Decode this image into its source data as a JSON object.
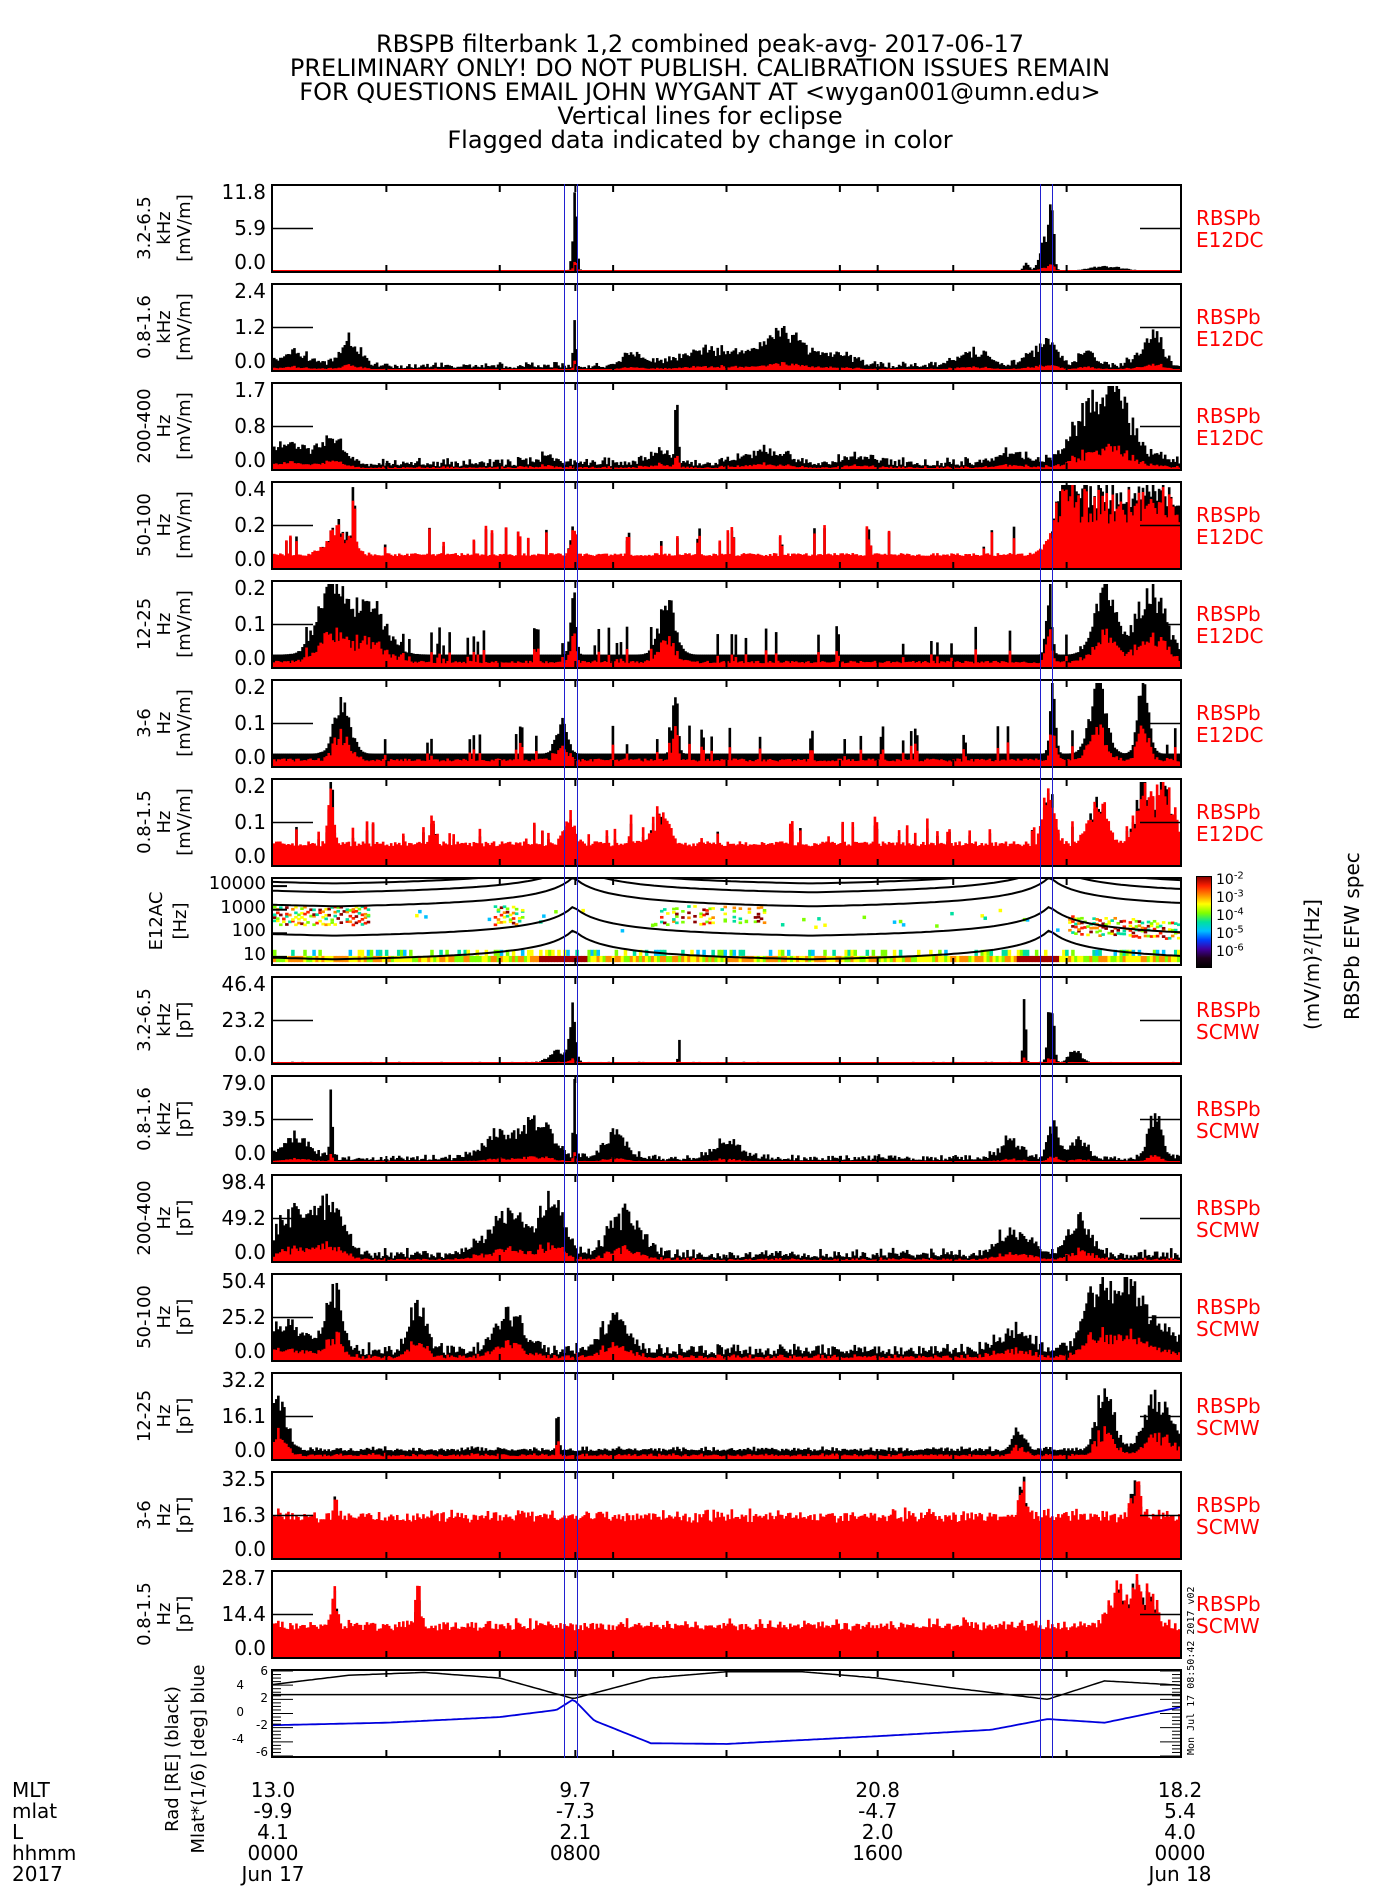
{
  "header": {
    "lines": [
      "RBSPB filterbank 1,2 combined peak-avg- 2017-06-17",
      "PRELIMINARY ONLY! DO NOT PUBLISH. CALIBRATION ISSUES REMAIN",
      "FOR QUESTIONS EMAIL JOHN WYGANT AT <wygan001@umn.edu>",
      "Vertical lines for eclipse",
      "Flagged data indicated by change in color"
    ]
  },
  "colors": {
    "peak": "#000000",
    "avg": "#ff0000",
    "eclipse": "#2020d0",
    "label": "#ff0000",
    "orbit_mlat": "#0000dd"
  },
  "chart_data": {
    "type": "line",
    "title": "RBSPB filterbank 1,2 combined peak-avg- 2017-06-17",
    "xlabel": "hhmm",
    "xlim_hours": [
      0,
      24
    ],
    "x_ticks_hours": [
      0,
      3,
      6,
      8,
      9,
      12,
      15,
      16,
      18,
      21,
      24
    ],
    "eclipse_hours": [
      [
        7.7,
        8.05
      ],
      [
        20.3,
        20.6
      ]
    ],
    "panels": [
      {
        "band": "3.2-6.5",
        "unit_line": "kHz",
        "unit": "[mV/m]",
        "ticks": [
          "11.8",
          "5.9",
          "0.0"
        ],
        "ymax": 11.8,
        "inst": [
          "RBSPb",
          "E12DC"
        ],
        "base": 0.02,
        "noise": 0.02,
        "peaks": [
          [
            7.95,
            11.8,
            0.08
          ],
          [
            19.9,
            1.5,
            0.1
          ],
          [
            20.35,
            6.0,
            0.15
          ],
          [
            20.55,
            11.8,
            0.1
          ],
          [
            22.0,
            0.8,
            0.6
          ]
        ],
        "sparse": false,
        "avg_ratio": 0.15
      },
      {
        "band": "0.8-1.6",
        "unit_line": "kHz",
        "unit": "[mV/m]",
        "ticks": [
          "2.4",
          "1.2",
          "0.0"
        ],
        "ymax": 2.4,
        "inst": [
          "RBSPb",
          "E12DC"
        ],
        "base": 0.05,
        "noise": 0.15,
        "peaks": [
          [
            0.5,
            0.6,
            0.5
          ],
          [
            2.0,
            1.0,
            0.4
          ],
          [
            7.95,
            2.4,
            0.05
          ],
          [
            9.5,
            0.4,
            0.4
          ],
          [
            11.5,
            0.6,
            1.2
          ],
          [
            13.5,
            1.2,
            0.8
          ],
          [
            15.0,
            0.4,
            0.6
          ],
          [
            18.5,
            0.5,
            0.6
          ],
          [
            20.0,
            0.4,
            0.3
          ],
          [
            20.5,
            1.0,
            0.3
          ],
          [
            21.5,
            0.6,
            0.3
          ],
          [
            22.8,
            0.3,
            0.3
          ],
          [
            23.3,
            1.2,
            0.3
          ]
        ],
        "sparse": false,
        "avg_ratio": 0.2
      },
      {
        "band": "200-400",
        "unit_line": "Hz",
        "unit": "[mV/m]",
        "ticks": [
          "1.7",
          "0.8",
          "0.0"
        ],
        "ymax": 1.7,
        "inst": [
          "RBSPb",
          "E12DC"
        ],
        "base": 0.05,
        "noise": 0.15,
        "peaks": [
          [
            0.3,
            0.5,
            0.6
          ],
          [
            1.5,
            0.7,
            0.5
          ],
          [
            7.2,
            0.2,
            0.3
          ],
          [
            10.2,
            0.3,
            0.5
          ],
          [
            10.65,
            1.7,
            0.05
          ],
          [
            13.0,
            0.3,
            0.8
          ],
          [
            15.5,
            0.2,
            0.6
          ],
          [
            19.5,
            0.3,
            0.6
          ],
          [
            21.5,
            1.2,
            0.6
          ],
          [
            22.3,
            1.6,
            0.6
          ],
          [
            23.5,
            0.2,
            0.3
          ]
        ],
        "sparse": false,
        "avg_ratio": 0.3
      },
      {
        "band": "50-100",
        "unit_line": "Hz",
        "unit": "[mV/m]",
        "ticks": [
          "0.4",
          "0.2",
          "0.0"
        ],
        "ymax": 0.4,
        "inst": [
          "RBSPb",
          "E12DC"
        ],
        "base": 0.04,
        "noise": 0.0,
        "peaks": [
          [
            2.1,
            0.4,
            0.05
          ],
          [
            1.7,
            0.2,
            0.4
          ],
          [
            7.9,
            0.2,
            0.1
          ],
          [
            21.0,
            0.4,
            0.4
          ],
          [
            22.0,
            0.4,
            1.0
          ],
          [
            23.5,
            0.4,
            0.8
          ]
        ],
        "sparse": true,
        "avg_ratio": 0.9
      },
      {
        "band": "12-25",
        "unit_line": "Hz",
        "unit": "[mV/m]",
        "ticks": [
          "0.2",
          "0.1",
          "0.0"
        ],
        "ymax": 0.2,
        "inst": [
          "RBSPb",
          "E12DC"
        ],
        "base": 0.03,
        "noise": 0.0,
        "peaks": [
          [
            1.5,
            0.2,
            0.5
          ],
          [
            2.5,
            0.15,
            0.6
          ],
          [
            7.9,
            0.2,
            0.1
          ],
          [
            10.4,
            0.15,
            0.3
          ],
          [
            20.5,
            0.2,
            0.1
          ],
          [
            22.0,
            0.2,
            0.4
          ],
          [
            23.2,
            0.2,
            0.5
          ]
        ],
        "sparse": true,
        "avg_ratio": 0.5
      },
      {
        "band": "3-6",
        "unit_line": "Hz",
        "unit": "[mV/m]",
        "ticks": [
          "0.2",
          "0.1",
          "0.0"
        ],
        "ymax": 0.2,
        "inst": [
          "RBSPb",
          "E12DC"
        ],
        "base": 0.03,
        "noise": 0.0,
        "peaks": [
          [
            1.8,
            0.15,
            0.3
          ],
          [
            7.6,
            0.1,
            0.2
          ],
          [
            10.6,
            0.2,
            0.1
          ],
          [
            20.6,
            0.2,
            0.1
          ],
          [
            21.8,
            0.2,
            0.3
          ],
          [
            23.0,
            0.2,
            0.2
          ]
        ],
        "sparse": true,
        "avg_ratio": 0.6
      },
      {
        "band": "0.8-1.5",
        "unit_line": "Hz",
        "unit": "[mV/m]",
        "ticks": [
          "0.2",
          "0.1",
          "0.0"
        ],
        "ymax": 0.2,
        "inst": [
          "RBSPb",
          "E12DC"
        ],
        "base": 0.03,
        "noise": 0.0,
        "peaks": [
          [
            1.5,
            0.2,
            0.1
          ],
          [
            4.2,
            0.1,
            0.1
          ],
          [
            7.8,
            0.1,
            0.2
          ],
          [
            10.2,
            0.1,
            0.3
          ],
          [
            20.5,
            0.2,
            0.2
          ],
          [
            21.8,
            0.15,
            0.3
          ],
          [
            23.0,
            0.2,
            0.3
          ],
          [
            23.6,
            0.2,
            0.3
          ]
        ],
        "sparse": true,
        "avg_ratio": 1.0
      },
      {
        "band": "3.2-6.5",
        "unit_line": "kHz",
        "unit": "[pT]",
        "ticks": [
          "46.4",
          "23.2",
          "0.0"
        ],
        "ymax": 46.4,
        "inst": [
          "RBSPb",
          "SCMW"
        ],
        "base": 0.3,
        "noise": 0.3,
        "peaks": [
          [
            7.5,
            8,
            0.3
          ],
          [
            7.9,
            46.4,
            0.1
          ],
          [
            10.7,
            35,
            0.02
          ],
          [
            19.85,
            40,
            0.05
          ],
          [
            20.55,
            46.4,
            0.1
          ],
          [
            21.2,
            10,
            0.2
          ]
        ],
        "sparse": false,
        "avg_ratio": 0.1
      },
      {
        "band": "0.8-1.6",
        "unit_line": "kHz",
        "unit": "[pT]",
        "ticks": [
          "79.0",
          "39.5",
          "0.0"
        ],
        "ymax": 79.0,
        "inst": [
          "RBSPb",
          "SCMW"
        ],
        "base": 1.5,
        "noise": 5,
        "peaks": [
          [
            0.6,
            28,
            0.5
          ],
          [
            1.5,
            79,
            0.05
          ],
          [
            6.0,
            30,
            0.6
          ],
          [
            7.0,
            45,
            0.5
          ],
          [
            7.95,
            79,
            0.05
          ],
          [
            9.0,
            30,
            0.4
          ],
          [
            12.0,
            20,
            0.5
          ],
          [
            19.5,
            20,
            0.4
          ],
          [
            20.6,
            40,
            0.2
          ],
          [
            21.3,
            25,
            0.3
          ],
          [
            23.3,
            55,
            0.25
          ]
        ],
        "sparse": false,
        "avg_ratio": 0.15
      },
      {
        "band": "200-400",
        "unit_line": "Hz",
        "unit": "[pT]",
        "ticks": [
          "98.4",
          "49.2",
          "0.0"
        ],
        "ymax": 98.4,
        "inst": [
          "RBSPb",
          "SCMW"
        ],
        "base": 3,
        "noise": 10,
        "peaks": [
          [
            0.5,
            60,
            0.7
          ],
          [
            1.5,
            70,
            0.5
          ],
          [
            6.2,
            60,
            0.8
          ],
          [
            7.4,
            80,
            0.4
          ],
          [
            9.3,
            60,
            0.6
          ],
          [
            19.6,
            35,
            0.6
          ],
          [
            21.3,
            55,
            0.4
          ]
        ],
        "sparse": false,
        "avg_ratio": 0.3
      },
      {
        "band": "50-100",
        "unit_line": "Hz",
        "unit": "[pT]",
        "ticks": [
          "50.4",
          "25.2",
          "0.0"
        ],
        "ymax": 50.4,
        "inst": [
          "RBSPb",
          "SCMW"
        ],
        "base": 3,
        "noise": 6,
        "peaks": [
          [
            0.4,
            20,
            0.7
          ],
          [
            1.6,
            45,
            0.3
          ],
          [
            3.8,
            35,
            0.3
          ],
          [
            6.2,
            30,
            0.5
          ],
          [
            9.0,
            25,
            0.5
          ],
          [
            19.6,
            15,
            0.6
          ],
          [
            21.8,
            45,
            0.5
          ],
          [
            22.6,
            40,
            0.5
          ],
          [
            23.4,
            20,
            0.8
          ]
        ],
        "sparse": false,
        "avg_ratio": 0.4
      },
      {
        "band": "12-25",
        "unit_line": "Hz",
        "unit": "[pT]",
        "ticks": [
          "32.2",
          "16.1",
          "0.0"
        ],
        "ymax": 32.2,
        "inst": [
          "RBSPb",
          "SCMW"
        ],
        "base": 3,
        "noise": 1.5,
        "peaks": [
          [
            0.1,
            25,
            0.3
          ],
          [
            7.5,
            20,
            0.05
          ],
          [
            19.7,
            10,
            0.2
          ],
          [
            22.0,
            32,
            0.3
          ],
          [
            23.4,
            25,
            0.5
          ]
        ],
        "sparse": false,
        "avg_ratio": 0.5
      },
      {
        "band": "3-6",
        "unit_line": "Hz",
        "unit": "[pT]",
        "ticks": [
          "32.5",
          "16.3",
          "0.0"
        ],
        "ymax": 32.5,
        "inst": [
          "RBSPb",
          "SCMW"
        ],
        "base": 10,
        "noise": 3,
        "peaks": [
          [
            1.6,
            20,
            0.05
          ],
          [
            19.8,
            22,
            0.15
          ],
          [
            22.8,
            22,
            0.2
          ]
        ],
        "sparse": false,
        "avg_ratio": 0.8
      },
      {
        "band": "0.8-1.5",
        "unit_line": "Hz",
        "unit": "[pT]",
        "ticks": [
          "28.7",
          "14.4",
          "0.0"
        ],
        "ymax": 28.7,
        "inst": [
          "RBSPb",
          "SCMW"
        ],
        "base": 6,
        "noise": 2,
        "peaks": [
          [
            1.6,
            20,
            0.1
          ],
          [
            3.8,
            20,
            0.1
          ],
          [
            22.3,
            18,
            0.3
          ],
          [
            22.8,
            26,
            0.2
          ],
          [
            23.2,
            20,
            0.2
          ]
        ],
        "sparse": false,
        "avg_ratio": 1.0
      }
    ],
    "spectrogram": {
      "label": "E12AC",
      "unit": "[Hz]",
      "ticks": [
        "10000",
        "1000",
        "100",
        "10"
      ],
      "ylim_hz": [
        5,
        20000
      ],
      "colorbar_ticks": [
        "-2",
        "-3",
        "-4",
        "-5",
        "-6"
      ],
      "colorbar_unit": "(mV/m)²/[Hz]",
      "colorbar_title": "RBSPb EFW spec"
    },
    "orbit": {
      "ylabel_lines": [
        "Rad [RE] (black)",
        "Mlat*(1/6) [deg] blue"
      ],
      "ticks": [
        "6",
        "4",
        "2",
        "0",
        "-2",
        "-4",
        "-6"
      ],
      "ylim": [
        -6,
        6
      ],
      "rad_hours": [
        0,
        2,
        4,
        6,
        7.95,
        10,
        12,
        14,
        16,
        18,
        20.5,
        22,
        24
      ],
      "rad_values": [
        4.1,
        5.4,
        5.8,
        5.0,
        2.1,
        5.0,
        5.9,
        5.9,
        5.0,
        3.6,
        2.0,
        4.6,
        4.0
      ],
      "mlat_hours": [
        0,
        3,
        6,
        7.5,
        7.95,
        8.5,
        10,
        12,
        16,
        19,
        20.5,
        22,
        24
      ],
      "mlat_values": [
        -1.65,
        -1.3,
        -0.5,
        0.5,
        2.0,
        -1.0,
        -4.2,
        -4.3,
        -3.2,
        -2.3,
        -0.78,
        -1.3,
        0.9
      ]
    },
    "footer": {
      "row_labels": [
        "MLT",
        "mlat",
        "L",
        "hhmm",
        "2017"
      ],
      "columns": [
        {
          "hour": 0,
          "values": [
            "13.0",
            "-9.9",
            "4.1",
            "0000",
            "Jun 17"
          ]
        },
        {
          "hour": 8,
          "values": [
            "9.7",
            "-7.3",
            "2.1",
            "0800",
            ""
          ]
        },
        {
          "hour": 16,
          "values": [
            "20.8",
            "-4.7",
            "2.0",
            "1600",
            ""
          ]
        },
        {
          "hour": 24,
          "values": [
            "18.2",
            "5.4",
            "4.0",
            "0000",
            "Jun 18"
          ]
        }
      ]
    },
    "timestamp": "Mon Jul 17 08:50:42 2017 v02"
  }
}
